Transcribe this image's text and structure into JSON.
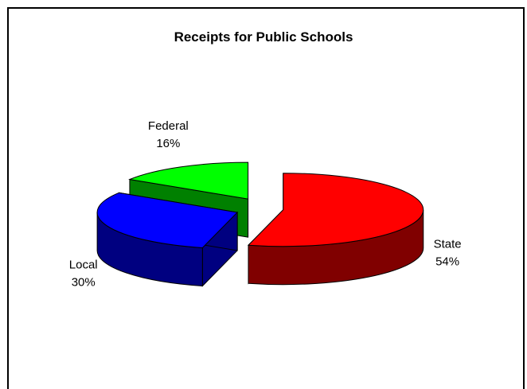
{
  "chart_data": {
    "type": "pie",
    "title": "Receipts for Public Schools",
    "slices": [
      {
        "label": "State",
        "percent_label": "54%",
        "value": 54,
        "color": "#ff0000",
        "side_color": "#800000"
      },
      {
        "label": "Local",
        "percent_label": "30%",
        "value": 30,
        "color": "#0000ff",
        "side_color": "#000080"
      },
      {
        "label": "Federal",
        "percent_label": "16%",
        "value": 16,
        "color": "#00ff00",
        "side_color": "#008000"
      }
    ],
    "style": "3d-exploded"
  }
}
